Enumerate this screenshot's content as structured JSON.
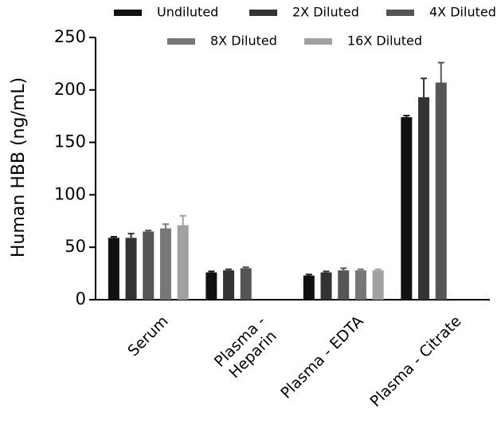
{
  "chart_data": {
    "type": "bar",
    "ylabel": "Human HBB (ng/mL)",
    "categories": [
      "Serum",
      "Plasma -\nHeparin",
      "Plasma - EDTA",
      "Plasma - Citrate"
    ],
    "series": [
      {
        "name": "Undiluted",
        "color": "#111111",
        "values": [
          59,
          26,
          23,
          174
        ],
        "errors": [
          1,
          1,
          1,
          1.5
        ]
      },
      {
        "name": "2X Diluted",
        "color": "#333333",
        "values": [
          59,
          28,
          26,
          193
        ],
        "errors": [
          4,
          1,
          1,
          18
        ]
      },
      {
        "name": "4X Diluted",
        "color": "#555555",
        "values": [
          65,
          30,
          28,
          207
        ],
        "errors": [
          1,
          1,
          2,
          19
        ]
      },
      {
        "name": "8X Diluted",
        "color": "#777777",
        "values": [
          68,
          null,
          28,
          null
        ],
        "errors": [
          4,
          null,
          1,
          null
        ]
      },
      {
        "name": "16X Diluted",
        "color": "#a0a0a0",
        "values": [
          71,
          null,
          28,
          null
        ],
        "errors": [
          9,
          null,
          1,
          null
        ]
      }
    ],
    "ylim": [
      0,
      250
    ],
    "yticks": [
      0,
      50,
      100,
      150,
      200,
      250
    ]
  }
}
